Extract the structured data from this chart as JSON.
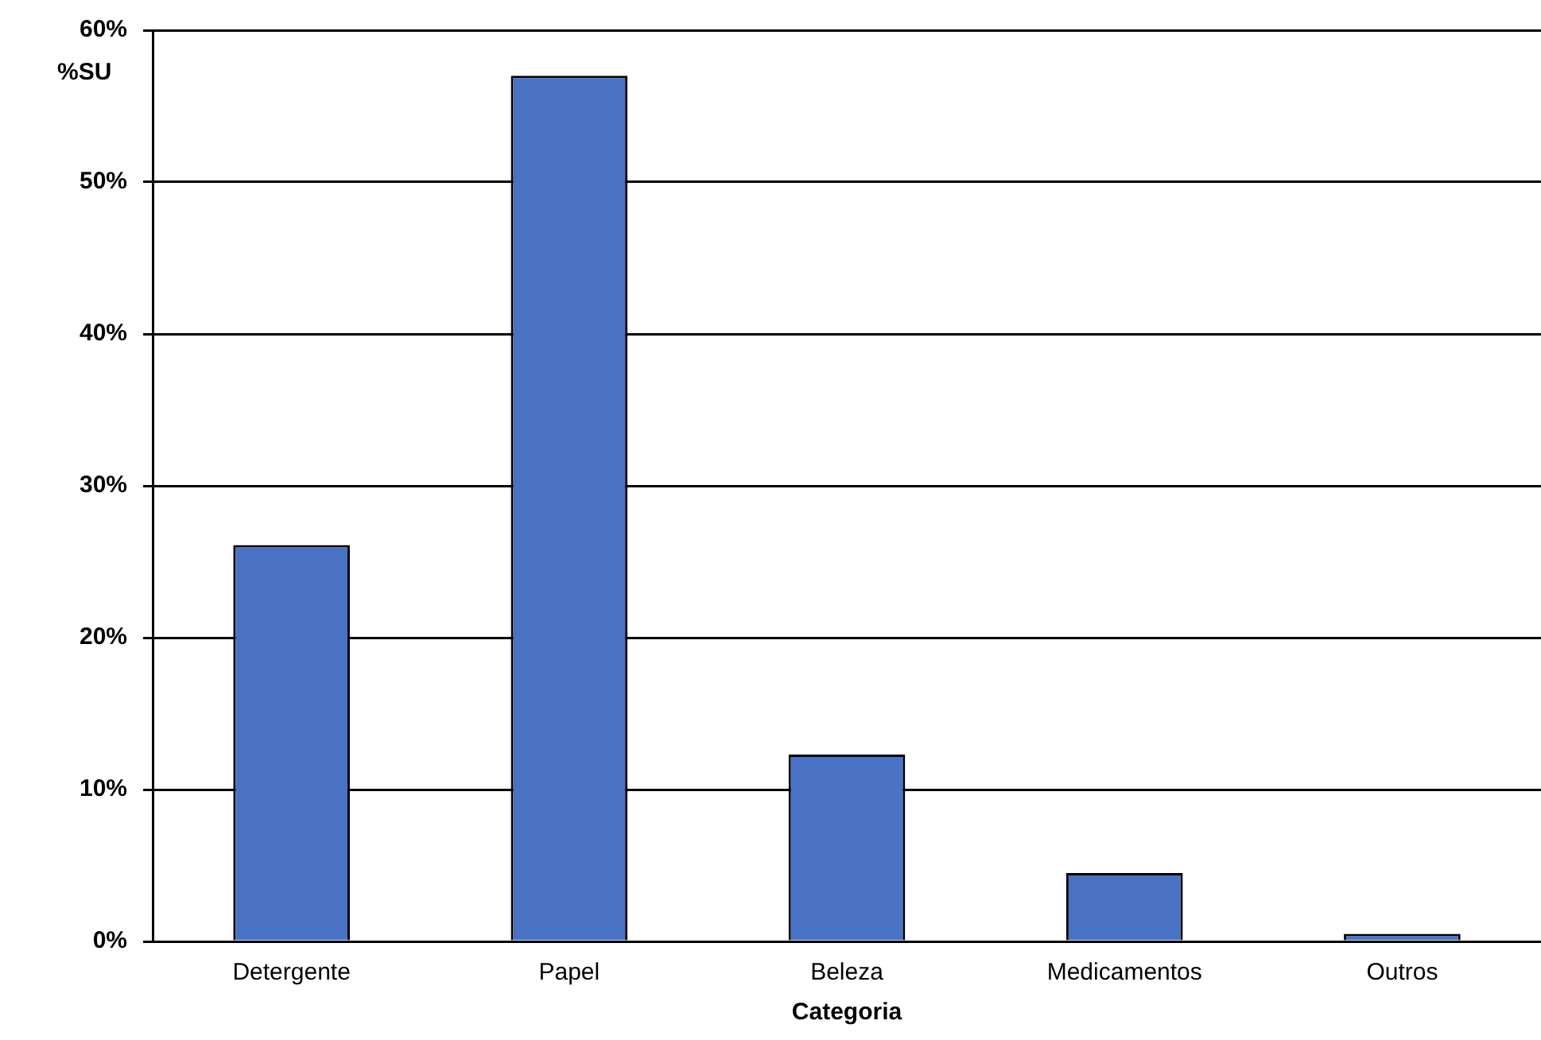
{
  "chart_data": {
    "type": "bar",
    "xlabel": "Categoria",
    "ylabel": "%SU",
    "categories": [
      "Detergente",
      "Papel",
      "Beleza",
      "Medicamentos",
      "Outros"
    ],
    "values": [
      26.1,
      57.0,
      12.3,
      4.5,
      0.5
    ],
    "color": "#4a72c4",
    "ylim": [
      0,
      60
    ],
    "yticks": [
      {
        "value": 0,
        "label": "0%"
      },
      {
        "value": 10,
        "label": "10%"
      },
      {
        "value": 20,
        "label": "20%"
      },
      {
        "value": 30,
        "label": "30%"
      },
      {
        "value": 40,
        "label": "40%"
      },
      {
        "value": 50,
        "label": "50%"
      },
      {
        "value": 60,
        "label": "60%"
      }
    ],
    "grid": "y",
    "legend": false
  }
}
